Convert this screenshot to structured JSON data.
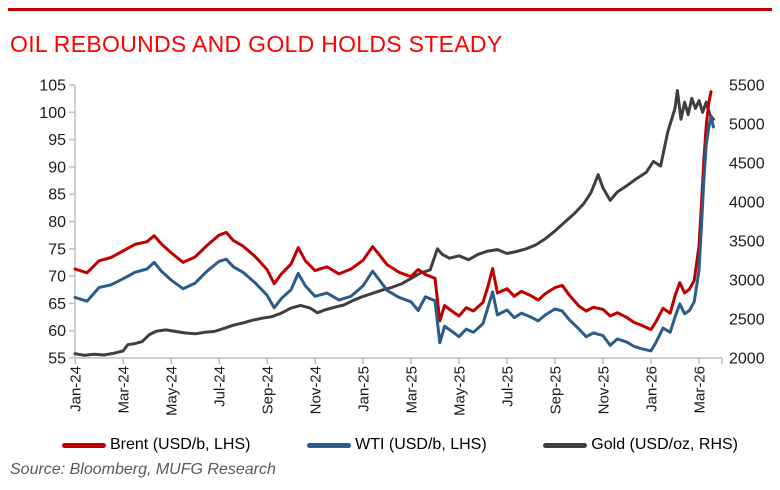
{
  "title": "OIL REBOUNDS AND GOLD HOLDS STEADY",
  "source_note": "Source: Bloomberg, MUFG Research",
  "colors": {
    "top_rule": "#C00000",
    "title": "#FE0000",
    "axis_line": "#BFBFBF",
    "axis_text": "#1A1A22",
    "source_text": "#595959"
  },
  "legend": [
    {
      "label": "Brent (USD/b, LHS)"
    },
    {
      "label": "WTI (USD/b, LHS)"
    },
    {
      "label": "Gold (USD/oz, RHS)"
    }
  ],
  "chart_data": {
    "type": "line",
    "title": "OIL REBOUNDS AND GOLD HOLDS STEADY",
    "x_unit": "months since Jan-2024",
    "grid": "off",
    "legend_position": "bottom",
    "x_tick_positions": [
      0,
      2,
      4,
      6,
      8,
      10,
      12,
      14,
      16,
      18,
      20,
      22,
      24,
      26
    ],
    "x_tick_labels": [
      "Jan-24",
      "Mar-24",
      "May-24",
      "Jul-24",
      "Sep-24",
      "Nov-24",
      "Jan-25",
      "Mar-25",
      "May-25",
      "Jul-25",
      "Sep-25",
      "Nov-25",
      "Jan-26",
      "Mar-26"
    ],
    "left_axis": {
      "label": "USD/b",
      "min": 55,
      "max": 105,
      "ticks": [
        55,
        60,
        65,
        70,
        75,
        80,
        85,
        90,
        95,
        100,
        105
      ]
    },
    "right_axis": {
      "label": "USD/oz",
      "min": 2000,
      "max": 5500,
      "ticks": [
        2000,
        2500,
        3000,
        3500,
        4000,
        4500,
        5000,
        5500
      ]
    },
    "series": [
      {
        "name": "Gold (USD/oz, RHS)",
        "axis": "right",
        "color": "#3F3F3F",
        "x": [
          0,
          0.4,
          0.8,
          1.2,
          1.6,
          2,
          2.2,
          2.5,
          2.8,
          3.1,
          3.4,
          3.8,
          4.2,
          4.6,
          5,
          5.4,
          5.8,
          6.2,
          6.6,
          7,
          7.4,
          7.8,
          8.2,
          8.6,
          9,
          9.4,
          9.8,
          10.1,
          10.4,
          10.8,
          11.2,
          11.6,
          12,
          12.4,
          12.8,
          13.2,
          13.6,
          14,
          14.4,
          14.8,
          15.1,
          15.3,
          15.6,
          16,
          16.4,
          16.8,
          17.2,
          17.6,
          18,
          18.4,
          18.8,
          19.2,
          19.6,
          20,
          20.4,
          20.8,
          21.2,
          21.5,
          21.8,
          22,
          22.3,
          22.6,
          23,
          23.4,
          23.8,
          24.1,
          24.4,
          24.7,
          25,
          25.1,
          25.25,
          25.4,
          25.55,
          25.7,
          25.85,
          26,
          26.15,
          26.3,
          26.45,
          26.6
        ],
        "values": [
          2055,
          2035,
          2048,
          2038,
          2060,
          2090,
          2170,
          2185,
          2210,
          2300,
          2345,
          2360,
          2340,
          2320,
          2310,
          2330,
          2340,
          2380,
          2420,
          2450,
          2485,
          2510,
          2530,
          2575,
          2640,
          2675,
          2640,
          2580,
          2615,
          2650,
          2680,
          2740,
          2790,
          2830,
          2870,
          2905,
          2950,
          3020,
          3090,
          3130,
          3400,
          3330,
          3280,
          3310,
          3260,
          3330,
          3370,
          3390,
          3340,
          3365,
          3400,
          3450,
          3530,
          3630,
          3740,
          3850,
          3980,
          4120,
          4350,
          4180,
          4020,
          4130,
          4210,
          4300,
          4380,
          4520,
          4460,
          4900,
          5200,
          5430,
          5060,
          5280,
          5120,
          5330,
          5200,
          5300,
          5150,
          5280,
          5120,
          5060
        ]
      },
      {
        "name": "Brent (USD/b, LHS)",
        "axis": "left",
        "color": "#C00000",
        "x": [
          0,
          0.5,
          1,
          1.5,
          2,
          2.5,
          3,
          3.3,
          3.6,
          4,
          4.5,
          5,
          5.5,
          6,
          6.3,
          6.6,
          7,
          7.5,
          8,
          8.3,
          8.6,
          9,
          9.3,
          9.6,
          10,
          10.5,
          11,
          11.5,
          12,
          12.4,
          12.7,
          13,
          13.5,
          14,
          14.3,
          14.6,
          15,
          15.2,
          15.4,
          15.7,
          16,
          16.3,
          16.6,
          17,
          17.2,
          17.4,
          17.6,
          18,
          18.3,
          18.6,
          19,
          19.3,
          19.6,
          20,
          20.3,
          20.6,
          21,
          21.3,
          21.6,
          22,
          22.3,
          22.6,
          23,
          23.3,
          23.6,
          24,
          24.2,
          24.5,
          24.8,
          25,
          25.2,
          25.4,
          25.6,
          25.8,
          26,
          26.1,
          26.2,
          26.3,
          26.4,
          26.5
        ],
        "values": [
          71.3,
          70.6,
          72.8,
          73.4,
          74.6,
          75.8,
          76.3,
          77.4,
          75.9,
          74.3,
          72.5,
          73.5,
          75.6,
          77.5,
          78.0,
          76.5,
          75.5,
          73.6,
          71.2,
          68.6,
          70.4,
          72.2,
          75.2,
          72.8,
          71.0,
          71.7,
          70.4,
          71.3,
          72.9,
          75.4,
          73.8,
          72.1,
          70.7,
          69.9,
          71.2,
          70.3,
          69.6,
          61.8,
          64.6,
          63.6,
          62.7,
          64.2,
          63.6,
          65.2,
          68.0,
          71.4,
          66.9,
          67.7,
          66.3,
          67.2,
          66.4,
          65.6,
          66.8,
          67.9,
          68.3,
          66.5,
          64.5,
          63.6,
          64.3,
          63.9,
          62.7,
          63.3,
          62.4,
          61.5,
          61.0,
          60.2,
          61.6,
          64.1,
          63.2,
          66.4,
          68.8,
          66.9,
          67.6,
          69.2,
          75.5,
          83.0,
          91.0,
          97.5,
          101.5,
          103.8
        ]
      },
      {
        "name": "WTI (USD/b, LHS)",
        "axis": "left",
        "color": "#2B5C8A",
        "x": [
          0,
          0.5,
          1,
          1.5,
          2,
          2.5,
          3,
          3.3,
          3.6,
          4,
          4.5,
          5,
          5.5,
          6,
          6.3,
          6.6,
          7,
          7.5,
          8,
          8.3,
          8.6,
          9,
          9.3,
          9.6,
          10,
          10.5,
          11,
          11.5,
          12,
          12.4,
          12.7,
          13,
          13.5,
          14,
          14.3,
          14.6,
          15,
          15.2,
          15.4,
          15.7,
          16,
          16.3,
          16.6,
          17,
          17.2,
          17.4,
          17.6,
          18,
          18.3,
          18.6,
          19,
          19.3,
          19.6,
          20,
          20.3,
          20.6,
          21,
          21.3,
          21.6,
          22,
          22.3,
          22.6,
          23,
          23.3,
          23.6,
          24,
          24.2,
          24.5,
          24.8,
          25,
          25.2,
          25.4,
          25.6,
          25.8,
          26,
          26.1,
          26.2,
          26.3,
          26.4,
          26.5,
          26.6
        ],
        "values": [
          66.1,
          65.4,
          67.9,
          68.4,
          69.5,
          70.7,
          71.3,
          72.5,
          70.9,
          69.3,
          67.7,
          68.7,
          70.9,
          72.7,
          73.1,
          71.7,
          70.7,
          68.8,
          66.5,
          64.2,
          65.9,
          67.5,
          70.5,
          68.2,
          66.3,
          66.9,
          65.6,
          66.3,
          68.2,
          70.9,
          69.2,
          67.4,
          66.1,
          65.3,
          63.7,
          66.2,
          65.5,
          57.8,
          60.8,
          59.9,
          58.9,
          60.3,
          59.7,
          61.3,
          64.2,
          67.1,
          62.9,
          63.8,
          62.4,
          63.2,
          62.5,
          61.8,
          62.9,
          64.0,
          63.6,
          62.0,
          60.3,
          58.9,
          59.6,
          59.1,
          57.3,
          58.5,
          57.9,
          57.1,
          56.7,
          56.3,
          57.8,
          60.5,
          59.7,
          62.5,
          64.9,
          63.1,
          63.7,
          65.3,
          71.0,
          79.0,
          87.5,
          94.0,
          97.0,
          99.2,
          97.3
        ]
      }
    ]
  }
}
